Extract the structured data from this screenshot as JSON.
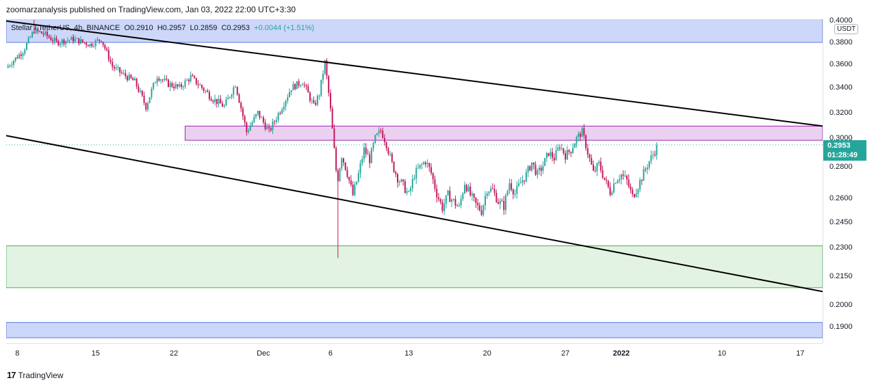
{
  "header": {
    "published_line": "zoomarzanalysis published on TradingView.com, Jan 03, 2022 22:00 UTC+3:30"
  },
  "legend": {
    "symbol": "Stellar / TetherUS, 4h, BINANCE",
    "open": "O0.2910",
    "high": "H0.2957",
    "low": "L0.2859",
    "close": "C0.2953",
    "change": "+0.0044 (+1.51%)"
  },
  "currency_label": "USDT",
  "last_price": {
    "value": "0.2953",
    "countdown": "01:28:49"
  },
  "colors": {
    "up": "#26a69a",
    "down": "#c2185b",
    "blue_zone": "#bccaf7",
    "pink_zone": "#e6c0ec",
    "green_zone": "#d9efd9",
    "trendline": "#000000",
    "price_tag": "#26a69a"
  },
  "footer": {
    "brand": "TradingView",
    "brand_icon": "tradingview-logo-icon"
  },
  "chart_data": {
    "type": "candlestick",
    "symbol": "XLMUSDT",
    "interval": "4h",
    "exchange": "BINANCE",
    "y_ticks": [
      "0.4000",
      "0.3800",
      "0.3600",
      "0.3400",
      "0.3200",
      "0.3000",
      "0.2800",
      "0.2600",
      "0.2450",
      "0.2300",
      "0.2150",
      "0.2000",
      "0.1900"
    ],
    "x_ticks": [
      {
        "label": "8",
        "day": 8
      },
      {
        "label": "15",
        "day": 15
      },
      {
        "label": "22",
        "day": 22
      },
      {
        "label": "Dec",
        "day": 30
      },
      {
        "label": "6",
        "day": 36
      },
      {
        "label": "13",
        "day": 43
      },
      {
        "label": "20",
        "day": 50
      },
      {
        "label": "27",
        "day": 57
      },
      {
        "label": "2022",
        "day": 62,
        "bold": true
      },
      {
        "label": "10",
        "day": 71
      },
      {
        "label": "17",
        "day": 78
      }
    ],
    "x_range_days": [
      7.0,
      80.0
    ],
    "key_points": [
      [
        7.0,
        0.357
      ],
      [
        8.5,
        0.372
      ],
      [
        9.5,
        0.391
      ],
      [
        10.5,
        0.387
      ],
      [
        11.5,
        0.38
      ],
      [
        13.0,
        0.383
      ],
      [
        14.5,
        0.378
      ],
      [
        15.5,
        0.383
      ],
      [
        16.5,
        0.358
      ],
      [
        17.5,
        0.351
      ],
      [
        18.5,
        0.345
      ],
      [
        19.5,
        0.325
      ],
      [
        20.5,
        0.35
      ],
      [
        21.5,
        0.343
      ],
      [
        22.5,
        0.34
      ],
      [
        23.5,
        0.349
      ],
      [
        24.5,
        0.34
      ],
      [
        25.5,
        0.331
      ],
      [
        26.5,
        0.325
      ],
      [
        27.5,
        0.343
      ],
      [
        28.5,
        0.305
      ],
      [
        29.5,
        0.32
      ],
      [
        30.5,
        0.305
      ],
      [
        31.5,
        0.322
      ],
      [
        32.5,
        0.34
      ],
      [
        33.5,
        0.345
      ],
      [
        34.5,
        0.325
      ],
      [
        35.0,
        0.335
      ],
      [
        35.5,
        0.362
      ],
      [
        36.0,
        0.322
      ],
      [
        36.3,
        0.294
      ],
      [
        36.6,
        0.27
      ],
      [
        37.0,
        0.288
      ],
      [
        37.5,
        0.276
      ],
      [
        38.0,
        0.262
      ],
      [
        38.5,
        0.275
      ],
      [
        39.0,
        0.292
      ],
      [
        39.5,
        0.285
      ],
      [
        40.0,
        0.3
      ],
      [
        40.5,
        0.306
      ],
      [
        41.0,
        0.296
      ],
      [
        41.5,
        0.282
      ],
      [
        42.0,
        0.273
      ],
      [
        42.5,
        0.268
      ],
      [
        43.0,
        0.262
      ],
      [
        43.5,
        0.275
      ],
      [
        44.0,
        0.28
      ],
      [
        44.5,
        0.284
      ],
      [
        45.0,
        0.276
      ],
      [
        45.5,
        0.263
      ],
      [
        46.0,
        0.254
      ],
      [
        46.5,
        0.262
      ],
      [
        47.0,
        0.258
      ],
      [
        47.5,
        0.254
      ],
      [
        48.0,
        0.27
      ],
      [
        48.5,
        0.262
      ],
      [
        49.0,
        0.256
      ],
      [
        49.5,
        0.252
      ],
      [
        50.0,
        0.266
      ],
      [
        50.5,
        0.265
      ],
      [
        51.0,
        0.258
      ],
      [
        51.5,
        0.255
      ],
      [
        52.0,
        0.27
      ],
      [
        52.5,
        0.263
      ],
      [
        53.0,
        0.27
      ],
      [
        53.5,
        0.275
      ],
      [
        54.0,
        0.283
      ],
      [
        54.5,
        0.275
      ],
      [
        55.0,
        0.281
      ],
      [
        55.5,
        0.29
      ],
      [
        56.0,
        0.286
      ],
      [
        56.5,
        0.295
      ],
      [
        57.0,
        0.288
      ],
      [
        57.5,
        0.292
      ],
      [
        58.0,
        0.3
      ],
      [
        58.5,
        0.305
      ],
      [
        59.0,
        0.29
      ],
      [
        59.5,
        0.276
      ],
      [
        60.0,
        0.282
      ],
      [
        60.5,
        0.272
      ],
      [
        61.0,
        0.264
      ],
      [
        61.5,
        0.272
      ],
      [
        62.0,
        0.275
      ],
      [
        62.5,
        0.271
      ],
      [
        63.0,
        0.261
      ],
      [
        63.5,
        0.268
      ],
      [
        64.0,
        0.276
      ],
      [
        64.5,
        0.284
      ],
      [
        65.0,
        0.291
      ],
      [
        65.3,
        0.2953
      ]
    ],
    "notable_extremes": {
      "high": 0.4005,
      "low": 0.2245
    },
    "zones": [
      {
        "name": "top blue zone",
        "y_from": 0.38,
        "y_to": 0.405,
        "x_from": 7.0,
        "x_to": 80.0,
        "color": "blue"
      },
      {
        "name": "pink resistance zone",
        "y_from": 0.2985,
        "y_to": 0.3095,
        "x_from": 23.0,
        "x_to": 80.0,
        "color": "pink"
      },
      {
        "name": "green support zone",
        "y_from": 0.209,
        "y_to": 0.231,
        "x_from": 7.0,
        "x_to": 80.0,
        "color": "green"
      },
      {
        "name": "bottom blue zone",
        "y_from": 0.185,
        "y_to": 0.192,
        "x_from": 7.0,
        "x_to": 80.0,
        "color": "blue"
      }
    ],
    "trendlines": [
      {
        "name": "upper channel",
        "from": [
          7.0,
          0.3995
        ],
        "to": [
          80.0,
          0.3095
        ]
      },
      {
        "name": "lower channel",
        "from": [
          7.0,
          0.302
        ],
        "to": [
          80.0,
          0.207
        ]
      }
    ],
    "last_price_line": 0.2953,
    "grid": false
  }
}
